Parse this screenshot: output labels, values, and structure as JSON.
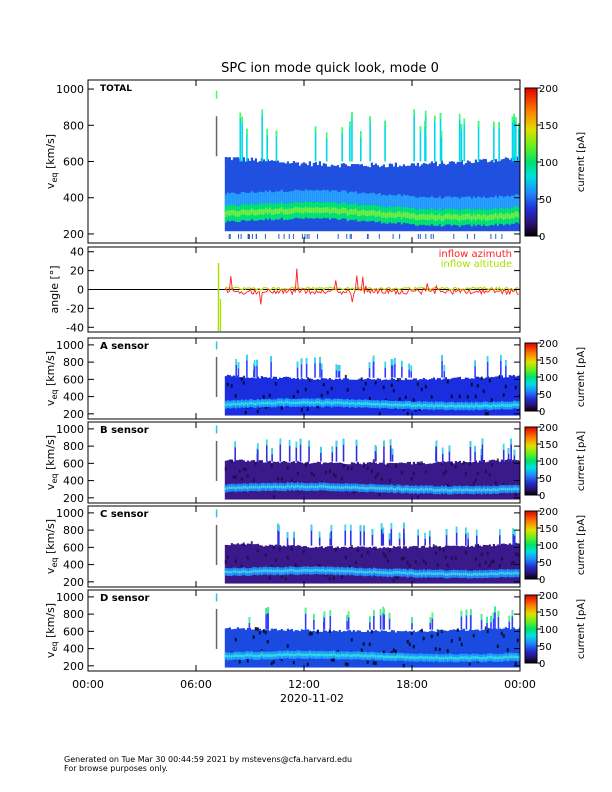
{
  "title": "SPC ion mode quick look, mode 0",
  "footer": {
    "line1": "Generated on Tue Mar 30 00:44:59 2021 by mstevens@cfa.harvard.edu",
    "line2": "For browse purposes only."
  },
  "chart_data": [
    {
      "type": "heatmap",
      "panel": "total",
      "label": "TOTAL",
      "ylabel_main": "v",
      "ylabel_sub": "eq",
      "ylabel_unit": "[km/s]",
      "ylim": [
        150,
        1050
      ],
      "yticks": [
        200,
        400,
        600,
        800,
        1000
      ],
      "colorbar_label": "current [pA]",
      "colorbar_range": [
        0,
        200
      ],
      "colorbar_ticks": [
        0,
        50,
        100,
        150,
        200
      ],
      "data_start_hour": 7.6,
      "core_speed_kms": 310,
      "upper_envelope_kms": [
        620,
        600,
        580,
        580,
        600,
        620
      ]
    },
    {
      "type": "line",
      "panel": "angle",
      "ylabel": "angle [°]",
      "ylim": [
        -45,
        45
      ],
      "yticks": [
        -40,
        -20,
        0,
        20,
        40
      ],
      "series": [
        {
          "name": "inflow azimuth",
          "color": "#ff2020"
        },
        {
          "name": "inflow altitude",
          "color": "#a8e000"
        }
      ],
      "zero_line": 0
    },
    {
      "type": "heatmap",
      "panel": "sensor-a",
      "label": "A sensor",
      "ylabel_main": "v",
      "ylabel_sub": "eq",
      "ylabel_unit": "[km/s]",
      "ylim": [
        140,
        1080
      ],
      "yticks": [
        200,
        400,
        600,
        800,
        1000
      ],
      "colorbar_label": "current [pA]",
      "colorbar_range": [
        0,
        200
      ],
      "colorbar_ticks": [
        0,
        50,
        100,
        150,
        200
      ]
    },
    {
      "type": "heatmap",
      "panel": "sensor-b",
      "label": "B sensor",
      "ylabel_main": "v",
      "ylabel_sub": "eq",
      "ylabel_unit": "[km/s]",
      "ylim": [
        140,
        1080
      ],
      "yticks": [
        200,
        400,
        600,
        800,
        1000
      ],
      "colorbar_label": "current [pA]",
      "colorbar_range": [
        0,
        200
      ],
      "colorbar_ticks": [
        0,
        50,
        100,
        150,
        200
      ]
    },
    {
      "type": "heatmap",
      "panel": "sensor-c",
      "label": "C sensor",
      "ylabel_main": "v",
      "ylabel_sub": "eq",
      "ylabel_unit": "[km/s]",
      "ylim": [
        140,
        1080
      ],
      "yticks": [
        200,
        400,
        600,
        800,
        1000
      ],
      "colorbar_label": "current [pA]",
      "colorbar_range": [
        0,
        200
      ],
      "colorbar_ticks": [
        0,
        50,
        100,
        150,
        200
      ]
    },
    {
      "type": "heatmap",
      "panel": "sensor-d",
      "label": "D sensor",
      "ylabel_main": "v",
      "ylabel_sub": "eq",
      "ylabel_unit": "[km/s]",
      "ylim": [
        140,
        1080
      ],
      "yticks": [
        200,
        400,
        600,
        800,
        1000
      ],
      "colorbar_label": "current [pA]",
      "colorbar_range": [
        0,
        200
      ],
      "colorbar_ticks": [
        0,
        50,
        100,
        150,
        200
      ]
    }
  ],
  "xaxis": {
    "tick_labels": [
      "00:00",
      "06:00",
      "12:00",
      "18:00",
      "00:00"
    ],
    "tick_hours": [
      0,
      6,
      12,
      18,
      24
    ],
    "date_label": "2020-11-02"
  }
}
